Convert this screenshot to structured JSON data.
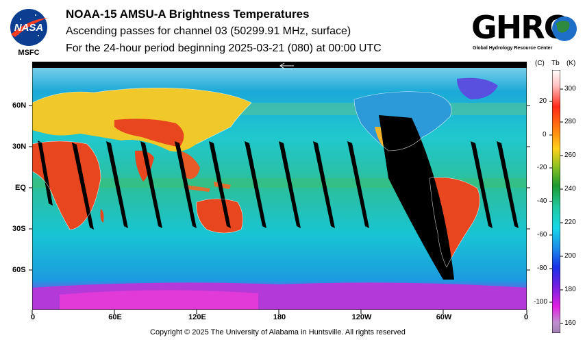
{
  "header": {
    "title": "NOAA-15 AMSU-A Brightness Temperatures",
    "subtitle": "Ascending passes for channel 03 (50299.91 MHz, surface)",
    "period": "For the 24-hour period beginning 2025-03-21 (080) at 00:00 UTC"
  },
  "logos": {
    "nasa_text": "NASA",
    "nasa_sub": "MSFC",
    "ghrc_text": "GHRC",
    "ghrc_sub": "Global Hydrology Resource Center"
  },
  "map": {
    "lat_labels": [
      "60N",
      "30N",
      "EQ",
      "30S",
      "60S"
    ],
    "lon_labels": [
      "0",
      "60E",
      "120E",
      "180",
      "120W",
      "60W",
      "0"
    ],
    "colors": {
      "ocean": "#19c8d2",
      "land_hot": "#e8461e",
      "land_warm": "#f2c81e",
      "polar": "#8a2be2",
      "swath_gap": "#000000"
    }
  },
  "colorbar": {
    "header_c": "(C)",
    "header_tb": "Tb",
    "header_k": "(K)",
    "kelvin_ticks": [
      "300",
      "280",
      "260",
      "240",
      "220",
      "200",
      "180",
      "160"
    ],
    "celsius_ticks": [
      "20",
      "0",
      "-20",
      "-40",
      "-60",
      "-80",
      "-100"
    ]
  },
  "footer": {
    "copyright": "Copyright © 2025 The University of Alabama in Huntsville.  All rights reserved"
  }
}
